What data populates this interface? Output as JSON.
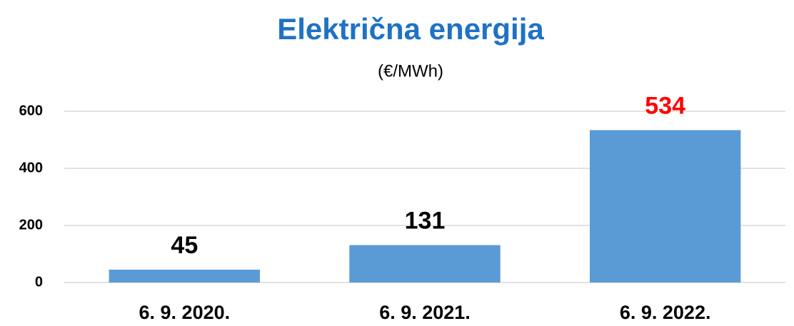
{
  "chart_data": {
    "type": "bar",
    "title": "Električna energija",
    "subtitle": "(€/MWh)",
    "categories": [
      "6. 9. 2020.",
      "6. 9. 2021.",
      "6. 9. 2022."
    ],
    "values": [
      45,
      131,
      534
    ],
    "color": "#5b9bd5",
    "label_colors": [
      "#000000",
      "#000000",
      "#ff0000"
    ],
    "ylim": [
      0,
      600
    ],
    "yticks": [
      0,
      200,
      400,
      600
    ],
    "grid": true
  }
}
